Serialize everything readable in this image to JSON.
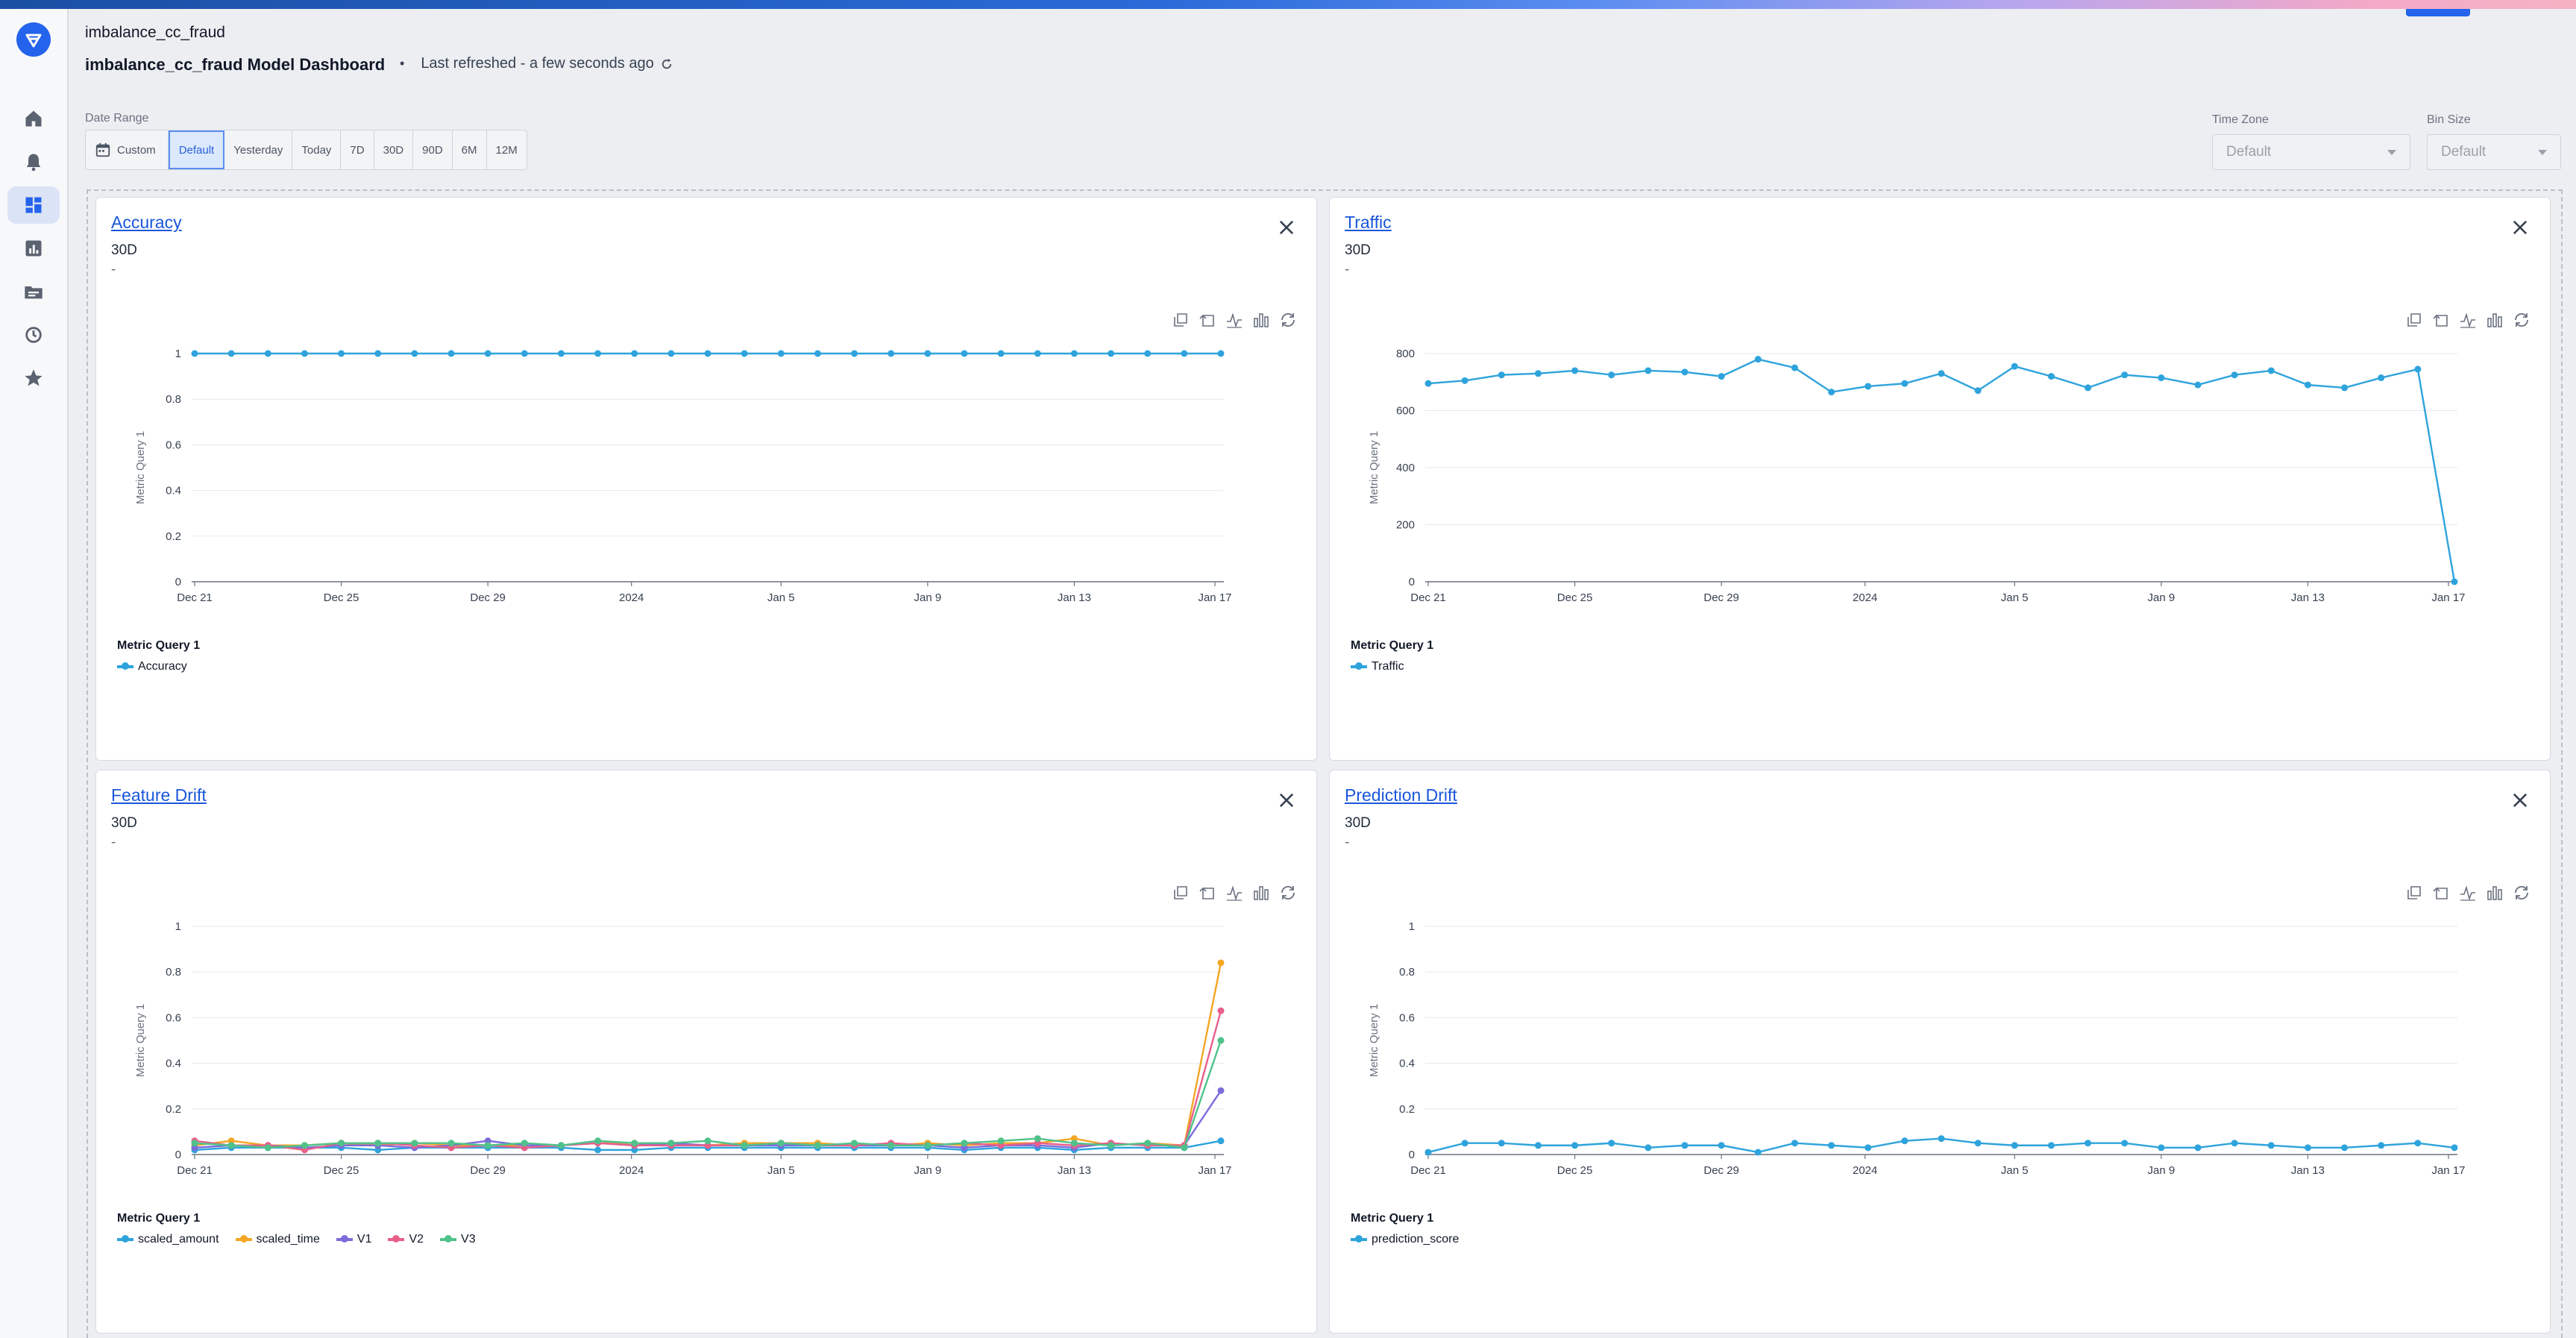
{
  "header": {
    "model_name": "imbalance_cc_fraud",
    "dashboard_title": "imbalance_cc_fraud Model Dashboard",
    "bullet": "•",
    "last_refreshed": "Last refreshed - a few seconds ago"
  },
  "sidebar": {
    "items": [
      {
        "icon": "home-icon"
      },
      {
        "icon": "bell-icon"
      },
      {
        "icon": "dashboard-icon",
        "active": true
      },
      {
        "icon": "bar-chart-icon"
      },
      {
        "icon": "folder-icon"
      },
      {
        "icon": "history-icon"
      },
      {
        "icon": "star-icon"
      }
    ]
  },
  "filters": {
    "date_range_label": "Date Range",
    "ranges": [
      "Custom",
      "Default",
      "Yesterday",
      "Today",
      "7D",
      "30D",
      "90D",
      "6M",
      "12M"
    ],
    "selected_range": "Default",
    "time_zone_label": "Time Zone",
    "time_zone_value": "Default",
    "bin_size_label": "Bin Size",
    "bin_size_value": "Default"
  },
  "colors": {
    "blue": "#2ea3dc",
    "orange": "#f5a623",
    "purple": "#7b6cdc",
    "pink": "#e8608a",
    "green": "#4fc28a",
    "brand": "#2463eb"
  },
  "panels": [
    {
      "title": "Accuracy",
      "range": "30D",
      "note": "-",
      "legend_title": "Metric Query 1",
      "legend_items": [
        "Accuracy"
      ]
    },
    {
      "title": "Traffic",
      "range": "30D",
      "note": "-",
      "legend_title": "Metric Query 1",
      "legend_items": [
        "Traffic"
      ]
    },
    {
      "title": "Feature Drift",
      "range": "30D",
      "note": "-",
      "legend_title": "Metric Query 1",
      "legend_items": [
        "scaled_amount",
        "scaled_time",
        "V1",
        "V2",
        "V3"
      ]
    },
    {
      "title": "Prediction Drift",
      "range": "30D",
      "note": "-",
      "legend_title": "Metric Query 1",
      "legend_items": [
        "prediction_score"
      ]
    }
  ],
  "chart_data": [
    {
      "type": "line",
      "title": "Accuracy",
      "ylabel": "Metric Query 1",
      "ylim": [
        0,
        1
      ],
      "yticks": [
        "0",
        "0.2",
        "0.4",
        "0.6",
        "0.8",
        "1"
      ],
      "xticks": [
        "Dec 21",
        "Dec 25",
        "Dec 29",
        "2024",
        "Jan 5",
        "Jan 9",
        "Jan 13",
        "Jan 17"
      ],
      "series": [
        {
          "name": "Accuracy",
          "values": [
            1,
            1,
            1,
            1,
            1,
            1,
            1,
            1,
            1,
            1,
            1,
            1,
            1,
            1,
            1,
            1,
            1,
            1,
            1,
            1,
            1,
            1,
            1,
            1,
            1,
            1,
            1,
            1,
            1
          ]
        }
      ]
    },
    {
      "type": "line",
      "title": "Traffic",
      "ylabel": "Metric Query 1",
      "ylim": [
        0,
        800
      ],
      "yticks": [
        "0",
        "200",
        "400",
        "600",
        "800"
      ],
      "xticks": [
        "Dec 21",
        "Dec 25",
        "Dec 29",
        "2024",
        "Jan 5",
        "Jan 9",
        "Jan 13",
        "Jan 17"
      ],
      "series": [
        {
          "name": "Traffic",
          "values": [
            695,
            705,
            725,
            730,
            740,
            725,
            740,
            735,
            720,
            780,
            750,
            665,
            685,
            695,
            730,
            670,
            755,
            720,
            680,
            725,
            715,
            690,
            725,
            740,
            690,
            680,
            715,
            745,
            0
          ]
        }
      ]
    },
    {
      "type": "line",
      "title": "Feature Drift",
      "ylabel": "Metric Query 1",
      "ylim": [
        0,
        1
      ],
      "yticks": [
        "0",
        "0.2",
        "0.4",
        "0.6",
        "0.8",
        "1"
      ],
      "xticks": [
        "Dec 21",
        "Dec 25",
        "Dec 29",
        "2024",
        "Jan 5",
        "Jan 9",
        "Jan 13",
        "Jan 17"
      ],
      "series": [
        {
          "name": "scaled_amount",
          "values": [
            0.02,
            0.03,
            0.03,
            0.03,
            0.03,
            0.02,
            0.03,
            0.03,
            0.03,
            0.03,
            0.03,
            0.02,
            0.02,
            0.03,
            0.03,
            0.03,
            0.03,
            0.03,
            0.03,
            0.03,
            0.03,
            0.02,
            0.03,
            0.03,
            0.02,
            0.03,
            0.03,
            0.03,
            0.06
          ]
        },
        {
          "name": "scaled_time",
          "values": [
            0.04,
            0.06,
            0.04,
            0.04,
            0.05,
            0.04,
            0.05,
            0.04,
            0.04,
            0.04,
            0.04,
            0.05,
            0.05,
            0.05,
            0.04,
            0.05,
            0.05,
            0.05,
            0.04,
            0.04,
            0.05,
            0.04,
            0.05,
            0.05,
            0.07,
            0.04,
            0.05,
            0.04,
            0.84
          ]
        },
        {
          "name": "V1",
          "values": [
            0.03,
            0.04,
            0.04,
            0.03,
            0.04,
            0.04,
            0.03,
            0.04,
            0.06,
            0.04,
            0.04,
            0.05,
            0.04,
            0.05,
            0.04,
            0.04,
            0.04,
            0.04,
            0.04,
            0.04,
            0.04,
            0.03,
            0.04,
            0.04,
            0.03,
            0.05,
            0.04,
            0.04,
            0.28
          ]
        },
        {
          "name": "V2",
          "values": [
            0.06,
            0.04,
            0.04,
            0.02,
            0.05,
            0.05,
            0.04,
            0.03,
            0.04,
            0.03,
            0.04,
            0.05,
            0.04,
            0.04,
            0.04,
            0.04,
            0.05,
            0.04,
            0.04,
            0.05,
            0.04,
            0.05,
            0.04,
            0.05,
            0.04,
            0.05,
            0.04,
            0.04,
            0.63
          ]
        },
        {
          "name": "V3",
          "values": [
            0.05,
            0.04,
            0.03,
            0.04,
            0.05,
            0.05,
            0.05,
            0.05,
            0.04,
            0.05,
            0.04,
            0.06,
            0.05,
            0.05,
            0.06,
            0.04,
            0.05,
            0.04,
            0.05,
            0.04,
            0.04,
            0.05,
            0.06,
            0.07,
            0.05,
            0.04,
            0.05,
            0.03,
            0.5
          ]
        }
      ]
    },
    {
      "type": "line",
      "title": "Prediction Drift",
      "ylabel": "Metric Query 1",
      "ylim": [
        0,
        1
      ],
      "yticks": [
        "0",
        "0.2",
        "0.4",
        "0.6",
        "0.8",
        "1"
      ],
      "xticks": [
        "Dec 21",
        "Dec 25",
        "Dec 29",
        "2024",
        "Jan 5",
        "Jan 9",
        "Jan 13",
        "Jan 17"
      ],
      "series": [
        {
          "name": "prediction_score",
          "values": [
            0.01,
            0.05,
            0.05,
            0.04,
            0.04,
            0.05,
            0.03,
            0.04,
            0.04,
            0.01,
            0.05,
            0.04,
            0.03,
            0.06,
            0.07,
            0.05,
            0.04,
            0.04,
            0.05,
            0.05,
            0.03,
            0.03,
            0.05,
            0.04,
            0.03,
            0.03,
            0.04,
            0.05,
            0.03
          ]
        }
      ]
    }
  ]
}
